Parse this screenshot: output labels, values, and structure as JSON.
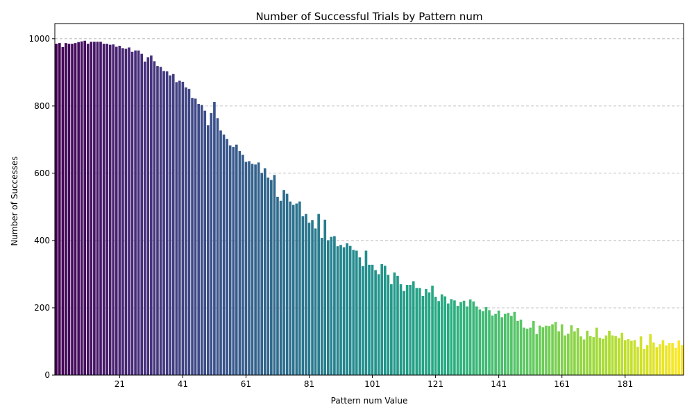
{
  "chart_data": {
    "type": "bar",
    "title": "Number of Successful Trials by Pattern num",
    "xlabel": "Pattern num Value",
    "ylabel": "Number of Successes",
    "x_start": 1,
    "x_tick_labels": [
      "21",
      "41",
      "61",
      "81",
      "101",
      "121",
      "141",
      "161",
      "181"
    ],
    "y_ticks": [
      0,
      200,
      400,
      600,
      800,
      1000
    ],
    "ylim": [
      0,
      1045
    ],
    "grid": "y-dashed",
    "colormap": "viridis",
    "values": [
      985,
      987,
      975,
      987,
      985,
      985,
      987,
      990,
      992,
      994,
      985,
      991,
      991,
      991,
      991,
      985,
      985,
      982,
      983,
      976,
      979,
      972,
      970,
      974,
      961,
      965,
      965,
      955,
      932,
      945,
      950,
      933,
      919,
      916,
      904,
      903,
      891,
      895,
      871,
      875,
      872,
      855,
      851,
      824,
      822,
      806,
      803,
      786,
      743,
      779,
      812,
      764,
      727,
      715,
      702,
      683,
      678,
      685,
      666,
      655,
      634,
      636,
      628,
      626,
      632,
      601,
      615,
      587,
      580,
      595,
      530,
      518,
      550,
      539,
      516,
      506,
      510,
      516,
      472,
      479,
      453,
      461,
      436,
      479,
      408,
      462,
      401,
      411,
      413,
      383,
      387,
      380,
      392,
      384,
      372,
      370,
      350,
      324,
      370,
      328,
      328,
      312,
      300,
      330,
      325,
      298,
      270,
      305,
      295,
      270,
      250,
      268,
      268,
      279,
      259,
      259,
      235,
      256,
      246,
      266,
      233,
      220,
      240,
      234,
      213,
      226,
      222,
      206,
      217,
      221,
      204,
      225,
      219,
      204,
      195,
      190,
      202,
      193,
      177,
      182,
      192,
      172,
      182,
      185,
      176,
      188,
      161,
      165,
      141,
      138,
      141,
      161,
      122,
      147,
      142,
      147,
      146,
      151,
      158,
      130,
      151,
      118,
      123,
      148,
      130,
      140,
      115,
      106,
      132,
      116,
      113,
      141,
      111,
      108,
      118,
      132,
      118,
      116,
      110,
      126,
      104,
      107,
      102,
      104,
      84,
      115,
      78,
      89,
      122,
      97,
      83,
      92,
      104,
      88,
      95,
      95,
      81,
      103,
      89
    ]
  }
}
